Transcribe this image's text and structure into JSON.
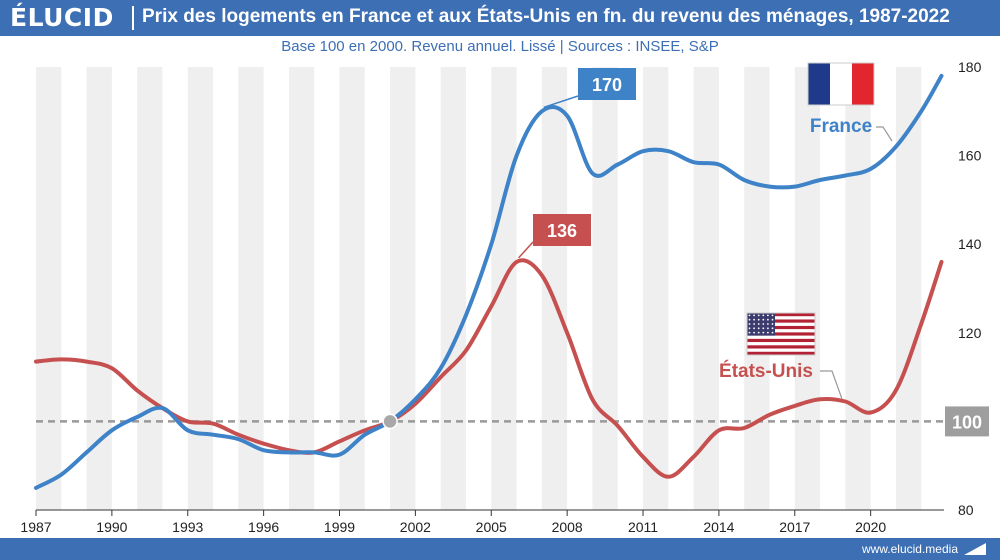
{
  "brand": {
    "logo": "ÉLUCID",
    "url": "www.elucid.media"
  },
  "colors": {
    "header": "#3d6fb4",
    "france": "#3e82c8",
    "usa": "#c65050",
    "ref": "#999999",
    "band": "#efefef"
  },
  "chart_data": {
    "type": "line",
    "title": "Prix des logements en France et aux États-Unis en fn. du revenu des ménages, 1987-2022",
    "subtitle": "Base 100 en 2000. Revenu annuel. Lissé  |  Sources : INSEE, S&P",
    "xlim": [
      1987,
      2022.9
    ],
    "ylim": [
      80,
      180
    ],
    "x_ticks": [
      "1987",
      "1990",
      "1993",
      "1996",
      "1999",
      "2002",
      "2005",
      "2008",
      "2011",
      "2014",
      "2017",
      "2020"
    ],
    "x_tick_values": [
      1987,
      1990,
      1993,
      1996,
      1999,
      2002,
      2005,
      2008,
      2011,
      2014,
      2017,
      2020
    ],
    "y_ticks": [
      "80",
      "100",
      "120",
      "140",
      "160",
      "180"
    ],
    "y_tick_values": [
      80,
      100,
      120,
      140,
      160,
      180
    ],
    "y_axis_side": "right",
    "alternating_year_bands": true,
    "reference_line": {
      "y": 100,
      "label": "100",
      "style": "dashed"
    },
    "intersection_marker": {
      "x": 2001,
      "y": 100
    },
    "series": [
      {
        "name": "France",
        "flag": "france-flag",
        "x": [
          1987,
          1988,
          1989,
          1990,
          1991,
          1992,
          1993,
          1994,
          1995,
          1996,
          1997,
          1998,
          1999,
          2000,
          2001,
          2002,
          2003,
          2004,
          2005,
          2006,
          2007,
          2008,
          2009,
          2010,
          2011,
          2012,
          2013,
          2014,
          2015,
          2016,
          2017,
          2018,
          2019,
          2020,
          2021,
          2022,
          2022.8
        ],
        "values": [
          85,
          88,
          93,
          98,
          101,
          103,
          98,
          97,
          96,
          93.5,
          93,
          93,
          92.5,
          97,
          100,
          105,
          112,
          124,
          140,
          160,
          170,
          169,
          156,
          158,
          161,
          161,
          158.5,
          158,
          154.5,
          153,
          153,
          154.5,
          155.5,
          157,
          162,
          170,
          178
        ]
      },
      {
        "name": "États-Unis",
        "flag": "usa-flag",
        "x": [
          1987,
          1988,
          1989,
          1990,
          1991,
          1992,
          1993,
          1994,
          1995,
          1996,
          1997,
          1998,
          1999,
          2000,
          2001,
          2002,
          2003,
          2004,
          2005,
          2006,
          2007,
          2008,
          2009,
          2010,
          2011,
          2012,
          2013,
          2014,
          2015,
          2016,
          2017,
          2018,
          2019,
          2020,
          2021,
          2022,
          2022.8
        ],
        "values": [
          113.5,
          114,
          113.5,
          112,
          107,
          103,
          100,
          99.5,
          97,
          95,
          93.5,
          93,
          95.5,
          98,
          100,
          104,
          110,
          116,
          126,
          136,
          133,
          120,
          105,
          99,
          92,
          87.5,
          92,
          98,
          98.5,
          101.5,
          103.5,
          105,
          104.5,
          102,
          107,
          122,
          136
        ]
      }
    ],
    "callouts": [
      {
        "series": "France",
        "x": 2007,
        "y": 170,
        "label": "170"
      },
      {
        "series": "États-Unis",
        "x": 2006,
        "y": 136,
        "label": "136"
      }
    ]
  }
}
